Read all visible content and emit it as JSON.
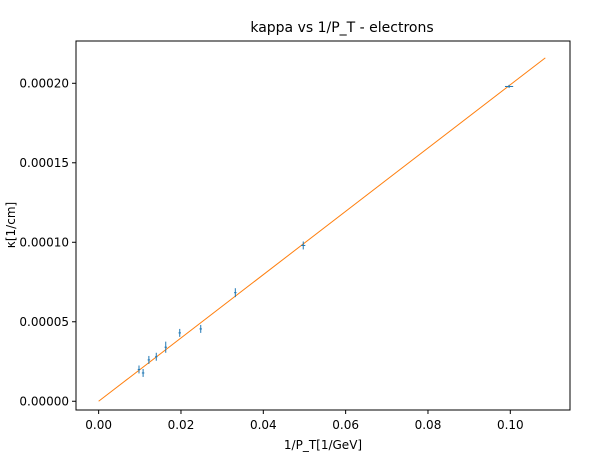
{
  "chart_data": {
    "type": "scatter",
    "title": "kappa vs 1/P_T - electrons",
    "xlabel": "1/P_T[1/GeV]",
    "ylabel": "κ[1/cm]",
    "xlim": [
      -0.0055,
      0.1145
    ],
    "ylim": [
      -5.5e-06,
      0.0002266
    ],
    "grid": false,
    "x_ticks": [
      {
        "value": 0.0,
        "label": "0.00"
      },
      {
        "value": 0.02,
        "label": "0.02"
      },
      {
        "value": 0.04,
        "label": "0.04"
      },
      {
        "value": 0.06,
        "label": "0.06"
      },
      {
        "value": 0.08,
        "label": "0.08"
      },
      {
        "value": 0.1,
        "label": "0.10"
      }
    ],
    "y_ticks": [
      {
        "value": 0.0,
        "label": "0.00000"
      },
      {
        "value": 5e-05,
        "label": "0.00005"
      },
      {
        "value": 0.0001,
        "label": "0.00010"
      },
      {
        "value": 0.00015,
        "label": "0.00015"
      },
      {
        "value": 0.0002,
        "label": "0.00020"
      }
    ],
    "series": [
      {
        "kind": "errorbar",
        "color": "#1f77b4",
        "points": [
          {
            "x": 0.0098,
            "y": 2e-05,
            "xerr": 0.0003,
            "yerr": 2.5e-06
          },
          {
            "x": 0.0108,
            "y": 1.78e-05,
            "xerr": 0.0003,
            "yerr": 2.5e-06
          },
          {
            "x": 0.0122,
            "y": 2.6e-05,
            "xerr": 0.0003,
            "yerr": 2.5e-06
          },
          {
            "x": 0.014,
            "y": 2.8e-05,
            "xerr": 0.0003,
            "yerr": 2.5e-06
          },
          {
            "x": 0.0163,
            "y": 3.4e-05,
            "xerr": 0.0003,
            "yerr": 3.5e-06
          },
          {
            "x": 0.0197,
            "y": 4.3e-05,
            "xerr": 0.0003,
            "yerr": 2.5e-06
          },
          {
            "x": 0.0248,
            "y": 4.55e-05,
            "xerr": 0.0003,
            "yerr": 2.5e-06
          },
          {
            "x": 0.0332,
            "y": 6.83e-05,
            "xerr": 0.0003,
            "yerr": 2.8e-06
          },
          {
            "x": 0.0497,
            "y": 9.8e-05,
            "xerr": 0.0005,
            "yerr": 2.5e-06
          },
          {
            "x": 0.0997,
            "y": 0.000198,
            "xerr": 0.001,
            "yerr": 1e-06
          }
        ]
      },
      {
        "kind": "line",
        "color": "#ff7f0e",
        "points": [
          {
            "x": 0.0,
            "y": 0.0
          },
          {
            "x": 0.1085,
            "y": 0.000216
          }
        ]
      }
    ]
  }
}
